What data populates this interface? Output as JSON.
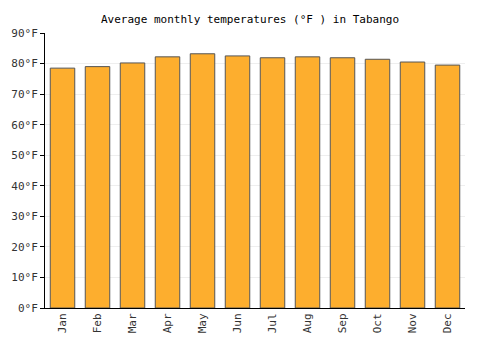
{
  "chart_data": {
    "type": "bar",
    "title": "Average monthly temperatures (°F ) in Tabango",
    "categories": [
      "Jan",
      "Feb",
      "Mar",
      "Apr",
      "May",
      "Jun",
      "Jul",
      "Aug",
      "Sep",
      "Oct",
      "Nov",
      "Dec"
    ],
    "values": [
      78.5,
      79,
      80.2,
      82.2,
      83.2,
      82.5,
      81.9,
      82.2,
      81.9,
      81.4,
      80.5,
      79.5
    ],
    "color": "#fdae2e",
    "ylim": [
      0,
      90
    ],
    "yticks": [
      {
        "value": 0,
        "label": "0°F"
      },
      {
        "value": 10,
        "label": "10°F"
      },
      {
        "value": 20,
        "label": "20°F"
      },
      {
        "value": 30,
        "label": "30°F"
      },
      {
        "value": 40,
        "label": "40°F"
      },
      {
        "value": 50,
        "label": "50°F"
      },
      {
        "value": 60,
        "label": "60°F"
      },
      {
        "value": 70,
        "label": "70°F"
      },
      {
        "value": 80,
        "label": "80°F"
      },
      {
        "value": 90,
        "label": "90°F"
      }
    ],
    "grid": true
  }
}
